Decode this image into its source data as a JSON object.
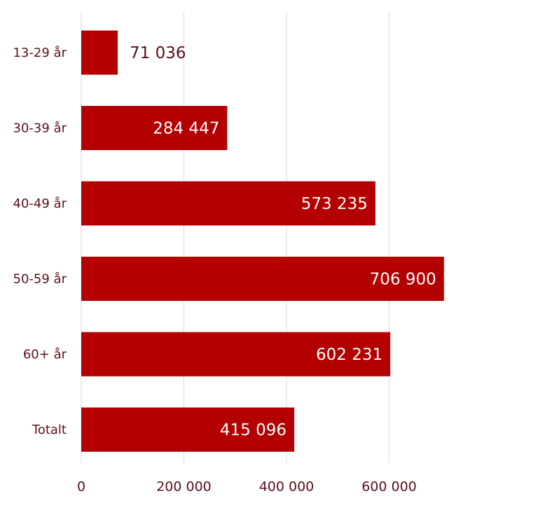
{
  "chart_data": {
    "type": "bar",
    "orientation": "horizontal",
    "categories": [
      "13-29 år",
      "30-39 år",
      "40-49 år",
      "50-59 år",
      "60+ år",
      "Totalt"
    ],
    "values": [
      71036,
      284447,
      573235,
      706900,
      602231,
      415096
    ],
    "value_labels": [
      "71 036",
      "284 447",
      "573 235",
      "706 900",
      "602 231",
      "415 096"
    ],
    "x_ticks": [
      0,
      200000,
      400000,
      600000
    ],
    "x_tick_labels": [
      "0",
      "200 000",
      "400 000",
      "600 000"
    ],
    "xlim": [
      0,
      800000
    ],
    "grid": "vertical",
    "colors": {
      "bar": "#b30000",
      "grid": "#d9d9d9",
      "text": "#5a0f1a",
      "label_inside": "#ffffff",
      "label_outside": "#5a0f1a"
    }
  }
}
